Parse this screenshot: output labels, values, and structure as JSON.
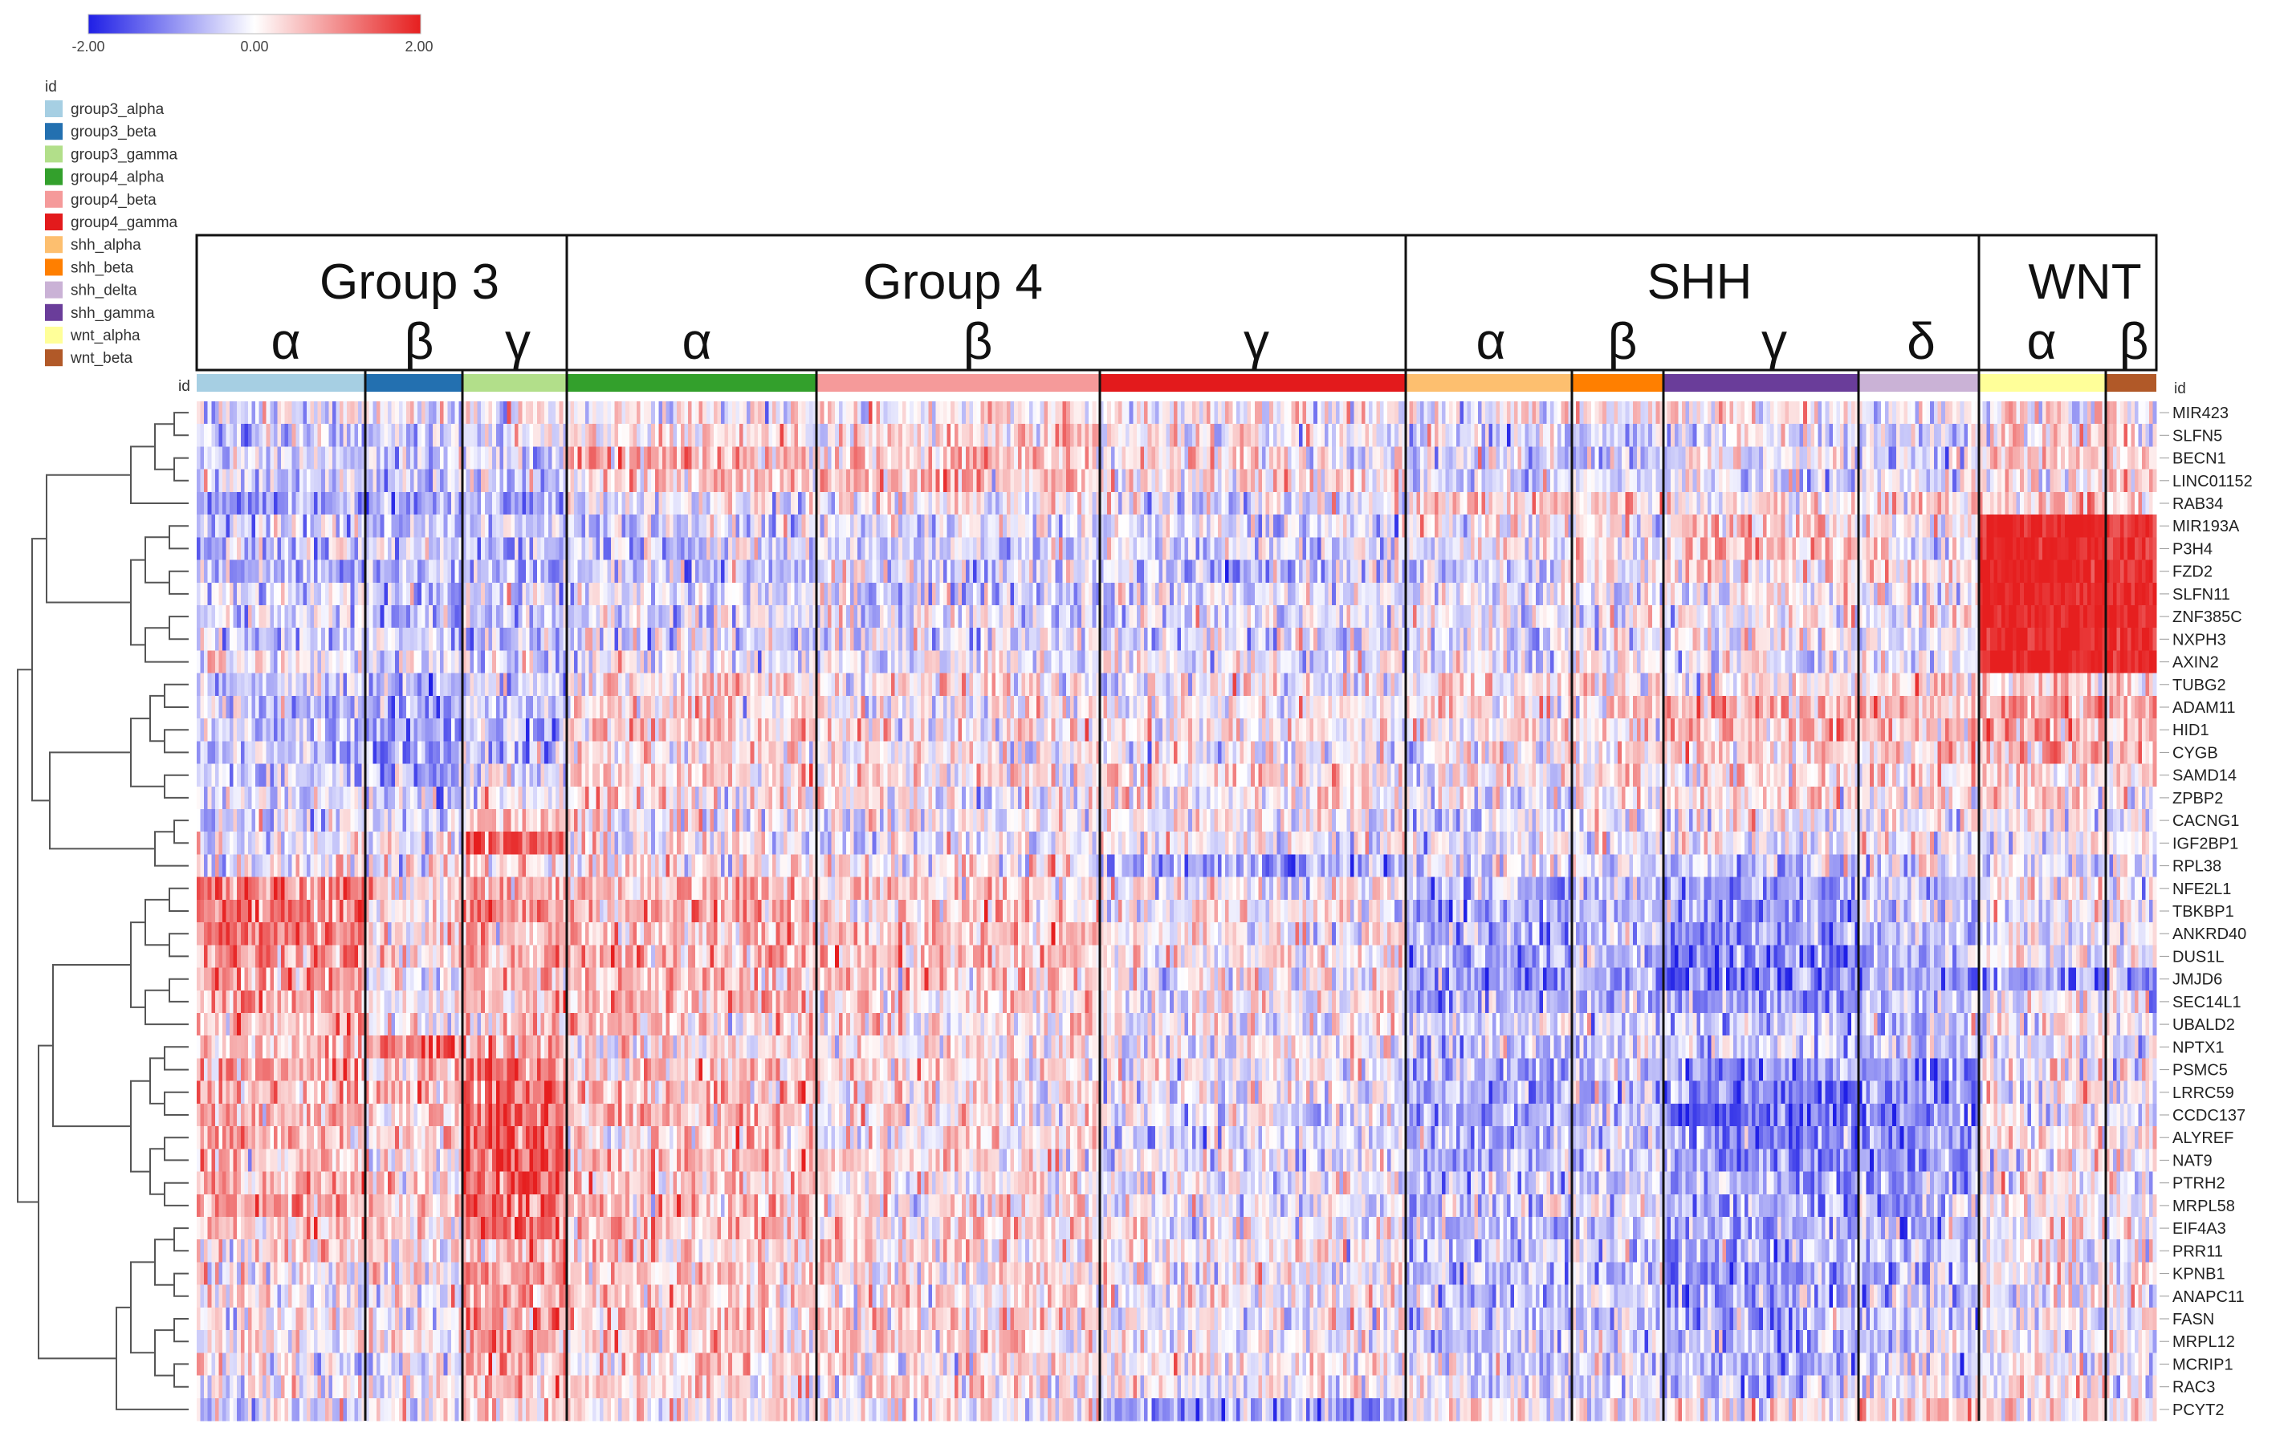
{
  "chart_data": {
    "type": "heatmap",
    "color_scale": {
      "min": -2.0,
      "mid": 0.0,
      "max": 2.0,
      "tick_labels": [
        "-2.00",
        "0.00",
        "2.00"
      ],
      "colors": [
        "#1f1fe6",
        "#ffffff",
        "#e61f1f"
      ]
    },
    "legend": {
      "title": "id",
      "entries": [
        {
          "label": "group3_alpha",
          "color": "#a6cfe3"
        },
        {
          "label": "group3_beta",
          "color": "#2370b0"
        },
        {
          "label": "group3_gamma",
          "color": "#b2df8a"
        },
        {
          "label": "group4_alpha",
          "color": "#33a02c"
        },
        {
          "label": "group4_beta",
          "color": "#f59a9a"
        },
        {
          "label": "group4_gamma",
          "color": "#e31a1c"
        },
        {
          "label": "shh_alpha",
          "color": "#fdbf6f"
        },
        {
          "label": "shh_beta",
          "color": "#ff7f00"
        },
        {
          "label": "shh_delta",
          "color": "#cab2d6"
        },
        {
          "label": "shh_gamma",
          "color": "#6a3d9a"
        },
        {
          "label": "wnt_alpha",
          "color": "#ffff99"
        },
        {
          "label": "wnt_beta",
          "color": "#b15928"
        }
      ]
    },
    "annotation_row_label": "id",
    "groups": [
      {
        "label": "Group 3",
        "subgroups": [
          "α",
          "β",
          "γ"
        ]
      },
      {
        "label": "Group 4",
        "subgroups": [
          "α",
          "β",
          "γ"
        ]
      },
      {
        "label": "SHH",
        "subgroups": [
          "α",
          "β",
          "γ",
          "δ"
        ]
      },
      {
        "label": "WNT",
        "subgroups": [
          "α",
          "β"
        ]
      }
    ],
    "columns": [
      {
        "id": "group3_alpha",
        "group": "Group 3",
        "subgroup": "α",
        "n_samples": 46
      },
      {
        "id": "group3_beta",
        "group": "Group 3",
        "subgroup": "β",
        "n_samples": 26
      },
      {
        "id": "group3_gamma",
        "group": "Group 3",
        "subgroup": "γ",
        "n_samples": 28
      },
      {
        "id": "group4_alpha",
        "group": "Group 4",
        "subgroup": "α",
        "n_samples": 68
      },
      {
        "id": "group4_beta",
        "group": "Group 4",
        "subgroup": "β",
        "n_samples": 76
      },
      {
        "id": "group4_gamma",
        "group": "Group 4",
        "subgroup": "γ",
        "n_samples": 83
      },
      {
        "id": "shh_alpha",
        "group": "SHH",
        "subgroup": "α",
        "n_samples": 46
      },
      {
        "id": "shh_beta",
        "group": "SHH",
        "subgroup": "β",
        "n_samples": 24
      },
      {
        "id": "shh_gamma",
        "group": "SHH",
        "subgroup": "γ",
        "n_samples": 53
      },
      {
        "id": "shh_delta",
        "group": "SHH",
        "subgroup": "δ",
        "n_samples": 32
      },
      {
        "id": "wnt_alpha",
        "group": "WNT",
        "subgroup": "α",
        "n_samples": 34
      },
      {
        "id": "wnt_beta",
        "group": "WNT",
        "subgroup": "β",
        "n_samples": 14
      }
    ],
    "genes": [
      "MIR423",
      "SLFN5",
      "BECN1",
      "LINC01152",
      "RAB34",
      "MIR193A",
      "P3H4",
      "FZD2",
      "SLFN11",
      "ZNF385C",
      "NXPH3",
      "AXIN2",
      "TUBG2",
      "ADAM11",
      "HID1",
      "CYGB",
      "SAMD14",
      "ZPBP2",
      "CACNG1",
      "IGF2BP1",
      "RPL38",
      "NFE2L1",
      "TBKBP1",
      "ANKRD40",
      "DUS1L",
      "JMJD6",
      "SEC14L1",
      "UBALD2",
      "NPTX1",
      "PSMC5",
      "LRRC59",
      "CCDC137",
      "ALYREF",
      "NAT9",
      "PTRH2",
      "MRPL58",
      "EIF4A3",
      "PRR11",
      "KPNB1",
      "ANAPC11",
      "FASN",
      "MRPL12",
      "MCRIP1",
      "RAC3",
      "PCYT2"
    ],
    "mean_expression_by_column": {
      "MIR423": [
        -0.2,
        0.0,
        -0.1,
        0.1,
        0.2,
        0.0,
        -0.2,
        0.0,
        0.1,
        -0.1,
        0.3,
        0.3
      ],
      "SLFN5": [
        -0.4,
        -0.3,
        -0.2,
        0.3,
        0.2,
        0.0,
        -0.3,
        -0.5,
        -0.2,
        -0.3,
        0.3,
        0.2
      ],
      "BECN1": [
        -0.3,
        -0.2,
        -0.3,
        0.6,
        0.5,
        0.2,
        -0.2,
        -0.3,
        -0.1,
        -0.2,
        0.4,
        0.3
      ],
      "LINC01152": [
        -0.5,
        -0.6,
        -0.4,
        0.4,
        0.6,
        0.3,
        -0.4,
        -0.3,
        -0.2,
        -0.3,
        0.2,
        0.3
      ],
      "RAB34": [
        -0.8,
        -0.9,
        -0.7,
        0.0,
        0.0,
        -0.2,
        0.4,
        0.5,
        0.2,
        0.4,
        0.5,
        0.3
      ],
      "MIR193A": [
        -0.4,
        -0.4,
        -0.5,
        -0.3,
        -0.2,
        -0.3,
        0.0,
        0.1,
        0.4,
        0.0,
        2.0,
        1.8
      ],
      "P3H4": [
        -0.5,
        -0.4,
        -0.5,
        -0.3,
        -0.3,
        -0.3,
        0.0,
        0.1,
        0.5,
        0.0,
        2.0,
        1.8
      ],
      "FZD2": [
        -0.6,
        -0.5,
        -0.6,
        -0.4,
        -0.3,
        -0.4,
        -0.2,
        0.1,
        0.3,
        0.2,
        2.0,
        1.8
      ],
      "SLFN11": [
        -0.4,
        -0.4,
        -0.3,
        -0.3,
        -0.3,
        -0.2,
        -0.2,
        -0.1,
        0.0,
        0.0,
        2.0,
        1.9
      ],
      "ZNF385C": [
        -0.3,
        -0.5,
        -0.3,
        -0.2,
        -0.2,
        -0.2,
        -0.1,
        0.0,
        0.1,
        0.0,
        2.0,
        1.9
      ],
      "NXPH3": [
        -0.4,
        -0.4,
        -0.4,
        -0.3,
        -0.3,
        -0.3,
        -0.2,
        -0.1,
        0.0,
        -0.1,
        2.0,
        1.9
      ],
      "AXIN2": [
        -0.1,
        -0.1,
        -0.1,
        -0.1,
        -0.1,
        -0.1,
        -0.1,
        -0.1,
        -0.1,
        -0.1,
        2.0,
        1.9
      ],
      "TUBG2": [
        -0.3,
        -0.6,
        -0.4,
        0.3,
        0.2,
        0.1,
        0.2,
        0.3,
        0.1,
        0.2,
        0.3,
        0.2
      ],
      "ADAM11": [
        -0.5,
        -0.8,
        -0.6,
        0.3,
        0.1,
        0.0,
        0.3,
        0.3,
        0.7,
        0.6,
        0.8,
        0.7
      ],
      "HID1": [
        -0.4,
        -0.7,
        -0.5,
        0.4,
        0.2,
        0.1,
        0.2,
        0.3,
        0.6,
        0.6,
        0.7,
        0.6
      ],
      "CYGB": [
        -0.5,
        -0.8,
        -0.6,
        0.2,
        0.0,
        -0.1,
        0.0,
        0.2,
        0.4,
        0.5,
        0.5,
        0.4
      ],
      "SAMD14": [
        -0.3,
        -0.5,
        -0.3,
        0.4,
        0.2,
        0.3,
        0.0,
        0.1,
        0.3,
        0.3,
        0.4,
        0.3
      ],
      "ZPBP2": [
        -0.2,
        -0.4,
        0.1,
        0.2,
        0.1,
        0.2,
        -0.1,
        0.0,
        0.2,
        0.1,
        0.2,
        0.1
      ],
      "CACNG1": [
        -0.3,
        -0.4,
        0.5,
        0.1,
        0.0,
        0.0,
        -0.3,
        -0.1,
        0.0,
        -0.1,
        0.0,
        0.0
      ],
      "IGF2BP1": [
        0.0,
        0.1,
        1.3,
        0.0,
        -0.1,
        0.0,
        -0.1,
        0.0,
        -0.1,
        0.0,
        -0.1,
        0.0
      ],
      "RPL38": [
        0.0,
        0.0,
        0.3,
        0.1,
        0.1,
        -0.8,
        -0.2,
        -0.2,
        -0.4,
        -0.3,
        -0.2,
        -0.1
      ],
      "NFE2L1": [
        1.3,
        0.2,
        0.8,
        0.6,
        0.4,
        0.0,
        -0.6,
        -0.5,
        -0.8,
        -0.4,
        0.1,
        0.0
      ],
      "TBKBP1": [
        1.2,
        0.3,
        0.9,
        0.7,
        0.5,
        0.1,
        -0.8,
        -0.6,
        -1.0,
        -0.5,
        0.0,
        0.0
      ],
      "ANKRD40": [
        1.1,
        0.2,
        0.7,
        0.6,
        0.5,
        0.1,
        -0.7,
        -0.5,
        -0.9,
        -0.6,
        0.0,
        0.0
      ],
      "DUS1L": [
        1.0,
        0.2,
        0.7,
        0.7,
        0.5,
        0.2,
        -0.7,
        -0.6,
        -1.2,
        -0.6,
        0.1,
        0.0
      ],
      "JMJD6": [
        0.8,
        0.0,
        0.5,
        0.5,
        0.4,
        0.0,
        -0.9,
        -0.6,
        -1.3,
        -0.8,
        -0.8,
        -0.6
      ],
      "SEC14L1": [
        0.7,
        0.1,
        0.6,
        0.6,
        0.3,
        0.0,
        -0.6,
        -0.5,
        -0.8,
        -0.5,
        0.0,
        -0.1
      ],
      "UBALD2": [
        0.6,
        0.0,
        0.5,
        0.5,
        0.3,
        0.0,
        -0.4,
        -0.3,
        -0.6,
        -0.4,
        0.0,
        -0.1
      ],
      "NPTX1": [
        0.4,
        1.4,
        0.9,
        0.2,
        0.1,
        0.0,
        -0.5,
        -0.3,
        -0.4,
        -0.3,
        -0.1,
        -0.1
      ],
      "PSMC5": [
        0.7,
        0.4,
        1.2,
        0.5,
        0.3,
        0.0,
        -0.7,
        -0.5,
        -0.9,
        -0.9,
        0.0,
        0.0
      ],
      "LRRC59": [
        0.6,
        0.5,
        1.2,
        0.5,
        0.2,
        -0.1,
        -0.6,
        -0.5,
        -1.2,
        -0.9,
        0.1,
        0.0
      ],
      "CCDC137": [
        0.7,
        0.4,
        1.3,
        0.6,
        0.2,
        -0.2,
        -0.7,
        -0.4,
        -1.3,
        -1.0,
        0.0,
        0.0
      ],
      "ALYREF": [
        0.6,
        0.3,
        1.4,
        0.5,
        0.2,
        -0.3,
        -0.8,
        -0.5,
        -1.0,
        -1.0,
        0.2,
        0.1
      ],
      "NAT9": [
        0.5,
        0.3,
        1.5,
        0.6,
        0.3,
        -0.2,
        -0.6,
        -0.4,
        -0.9,
        -0.9,
        0.1,
        0.0
      ],
      "PTRH2": [
        0.6,
        0.4,
        1.5,
        0.4,
        0.2,
        -0.1,
        -0.5,
        -0.3,
        -0.7,
        -0.8,
        0.1,
        0.0
      ],
      "MRPL58": [
        0.8,
        0.3,
        1.3,
        0.5,
        0.2,
        -0.1,
        -0.4,
        -0.3,
        -0.6,
        -0.6,
        0.1,
        0.0
      ],
      "EIF4A3": [
        0.5,
        0.3,
        1.2,
        0.6,
        0.3,
        0.0,
        -0.5,
        -0.3,
        -0.7,
        -0.6,
        0.0,
        0.0
      ],
      "PRR11": [
        0.3,
        0.2,
        0.9,
        0.5,
        0.3,
        0.0,
        -0.6,
        -0.3,
        -0.7,
        -0.5,
        0.0,
        0.0
      ],
      "KPNB1": [
        0.2,
        0.1,
        0.9,
        0.4,
        0.2,
        0.0,
        -0.6,
        -0.4,
        -0.8,
        -0.5,
        0.0,
        0.0
      ],
      "ANAPC11": [
        0.1,
        0.0,
        0.8,
        0.4,
        0.3,
        0.0,
        -0.5,
        -0.4,
        -0.7,
        -0.5,
        -0.1,
        0.0
      ],
      "FASN": [
        0.0,
        0.0,
        0.8,
        0.5,
        0.3,
        0.0,
        -0.5,
        -0.3,
        -0.6,
        -0.4,
        0.0,
        0.0
      ],
      "MRPL12": [
        0.1,
        0.1,
        0.9,
        0.5,
        0.3,
        0.0,
        -0.4,
        -0.2,
        -0.6,
        -0.4,
        0.0,
        0.0
      ],
      "MCRIP1": [
        0.0,
        0.0,
        0.7,
        0.4,
        0.2,
        0.0,
        -0.3,
        -0.2,
        -0.8,
        -0.3,
        0.1,
        0.0
      ],
      "RAC3": [
        0.0,
        0.0,
        0.6,
        0.3,
        0.2,
        0.0,
        -0.2,
        -0.2,
        -0.5,
        -0.2,
        0.1,
        0.0
      ],
      "PCYT2": [
        -0.2,
        0.0,
        0.3,
        0.2,
        0.1,
        -0.8,
        0.1,
        0.0,
        0.1,
        0.5,
        0.2,
        0.1
      ]
    }
  }
}
